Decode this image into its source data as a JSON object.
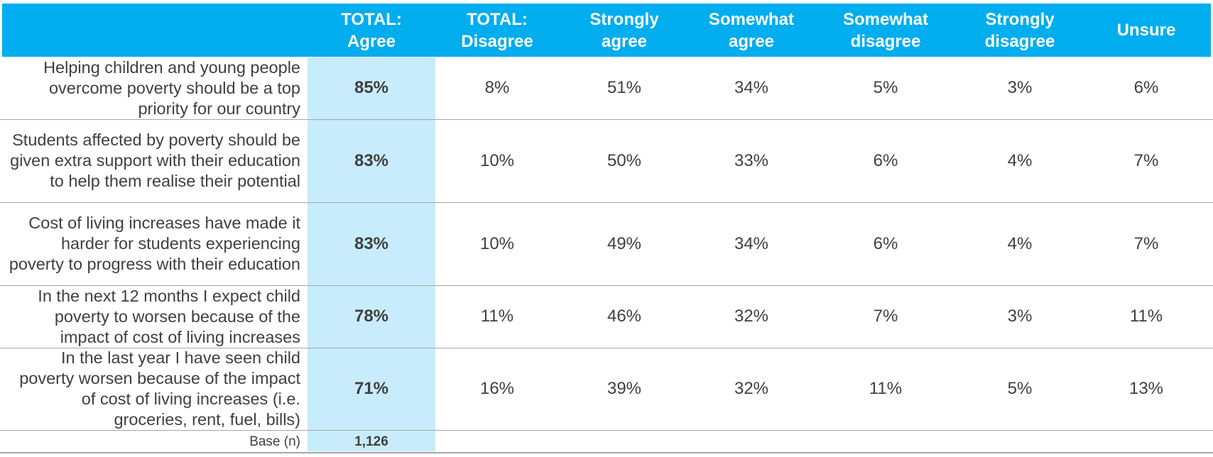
{
  "chart_data": {
    "type": "table",
    "columns": [
      "TOTAL:\nAgree",
      "TOTAL:\nDisagree",
      "Strongly\nagree",
      "Somewhat\nagree",
      "Somewhat\ndisagree",
      "Strongly\ndisagree",
      "Unsure"
    ],
    "rows": [
      {
        "label": "Helping children and young people overcome poverty should be a top priority for our country",
        "values": [
          "85%",
          "8%",
          "51%",
          "34%",
          "5%",
          "3%",
          "6%"
        ]
      },
      {
        "label": "Students affected by poverty should be given extra support with their education to help them realise their potential",
        "values": [
          "83%",
          "10%",
          "50%",
          "33%",
          "6%",
          "4%",
          "7%"
        ]
      },
      {
        "label": "Cost of living increases have made it harder for students experiencing poverty to progress with their education",
        "values": [
          "83%",
          "10%",
          "49%",
          "34%",
          "6%",
          "4%",
          "7%"
        ]
      },
      {
        "label": "In the next 12 months I expect child poverty to worsen because of the impact of cost of living increases",
        "values": [
          "78%",
          "11%",
          "46%",
          "32%",
          "7%",
          "3%",
          "11%"
        ]
      },
      {
        "label": "In the last year I have seen child poverty worsen because of the impact of cost of living increases (i.e. groceries, rent, fuel, bills)",
        "values": [
          "71%",
          "16%",
          "39%",
          "32%",
          "11%",
          "5%",
          "13%"
        ]
      }
    ],
    "base": {
      "label": "Base (n)",
      "value": "1,126"
    },
    "colors": {
      "header": "#00adef",
      "highlight": "#c8ecfb",
      "text": "#404040",
      "rule": "#a6a6a6"
    }
  }
}
